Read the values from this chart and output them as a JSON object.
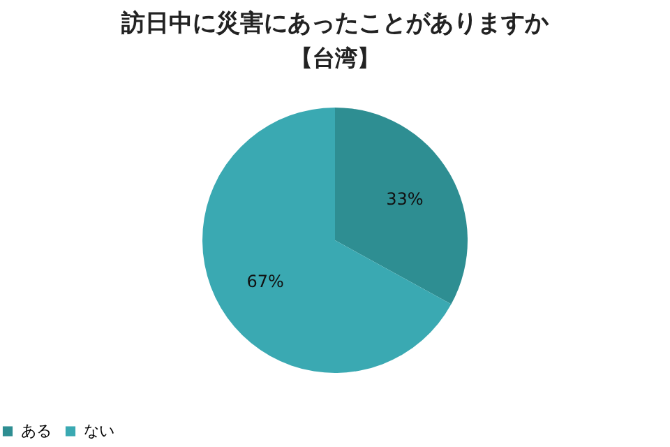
{
  "chart_data": {
    "type": "pie",
    "title": "訪日中に災害にあったことがありますか",
    "subtitle": "【台湾】",
    "categories": [
      "ある",
      "ない"
    ],
    "values": [
      33,
      67
    ],
    "colors": [
      "#2e8e92",
      "#3aa9b2"
    ],
    "value_labels": [
      "33%",
      "67%"
    ],
    "legend": "bottom"
  }
}
